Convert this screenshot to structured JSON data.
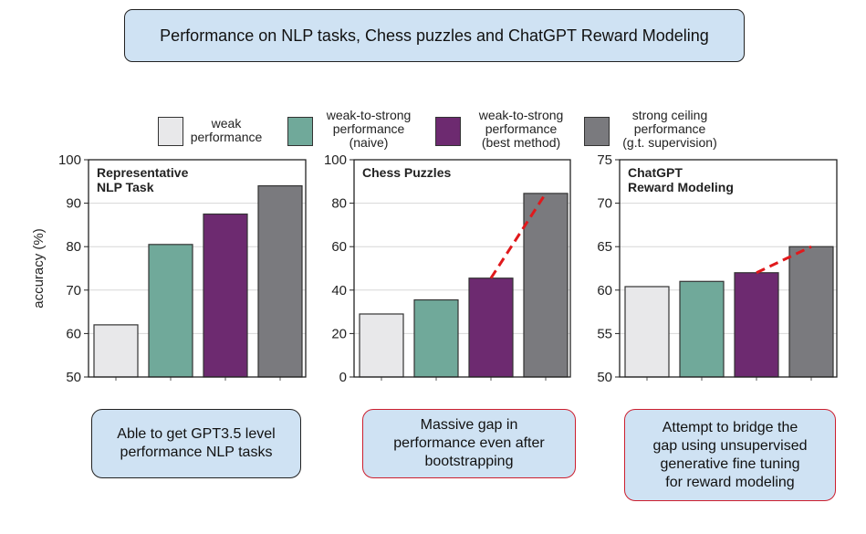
{
  "title": "Performance on NLP tasks, Chess puzzles and ChatGPT Reward Modeling",
  "colors": {
    "weak": "#e8e8ea",
    "naive": "#70a99a",
    "best": "#6d2a70",
    "ceiling": "#7a7a7e",
    "dashed": "#e0191c",
    "note_blue_border": "#222222",
    "note_red_border": "#cc1f2f",
    "note_fill": "#cfe2f3"
  },
  "legend": [
    {
      "label": "weak\nperformance",
      "color_key": "weak"
    },
    {
      "label": "weak-to-strong\nperformance\n(naive)",
      "color_key": "naive"
    },
    {
      "label": "weak-to-strong\nperformance\n(best method)",
      "color_key": "best"
    },
    {
      "label": "strong ceiling\nperformance\n(g.t. supervision)",
      "color_key": "ceiling"
    }
  ],
  "ylabel": "accuracy (%)",
  "chart_data": [
    {
      "type": "bar",
      "title": "Representative\nNLP Task",
      "ylabel": "accuracy (%)",
      "ylim": [
        50,
        100
      ],
      "yticks": [
        "50",
        "60",
        "70",
        "80",
        "90",
        "100"
      ],
      "categories": [
        "weak performance",
        "weak-to-strong performance (naive)",
        "weak-to-strong performance (best method)",
        "strong ceiling performance (g.t. supervision)"
      ],
      "values": [
        62,
        80.5,
        87.5,
        94
      ],
      "dashed_gap": false,
      "grid": true
    },
    {
      "type": "bar",
      "title": "Chess Puzzles",
      "ylim": [
        0,
        100
      ],
      "yticks": [
        "0",
        "20",
        "40",
        "60",
        "80",
        "100"
      ],
      "categories": [
        "weak performance",
        "weak-to-strong performance (naive)",
        "weak-to-strong performance (best method)",
        "strong ceiling performance (g.t. supervision)"
      ],
      "values": [
        29,
        35.5,
        45.5,
        84.5
      ],
      "dashed_gap": true,
      "grid": true
    },
    {
      "type": "bar",
      "title": "ChatGPT\nReward Modeling",
      "ylim": [
        50,
        75
      ],
      "yticks": [
        "50",
        "55",
        "60",
        "65",
        "70",
        "75"
      ],
      "categories": [
        "weak performance",
        "weak-to-strong performance (naive)",
        "weak-to-strong performance (best method)",
        "strong ceiling performance (g.t. supervision)"
      ],
      "values": [
        60.4,
        61,
        62,
        65
      ],
      "dashed_gap": true,
      "grid": true
    }
  ],
  "notes": [
    {
      "text": "Able to get GPT3.5 level\nperformance NLP tasks",
      "border_key": "note_blue_border"
    },
    {
      "text": "Massive gap in\nperformance even after\nbootstrapping",
      "border_key": "note_red_border"
    },
    {
      "text": "Attempt to bridge the\ngap using unsupervised\ngenerative fine tuning\nfor reward modeling",
      "border_key": "note_red_border"
    }
  ]
}
